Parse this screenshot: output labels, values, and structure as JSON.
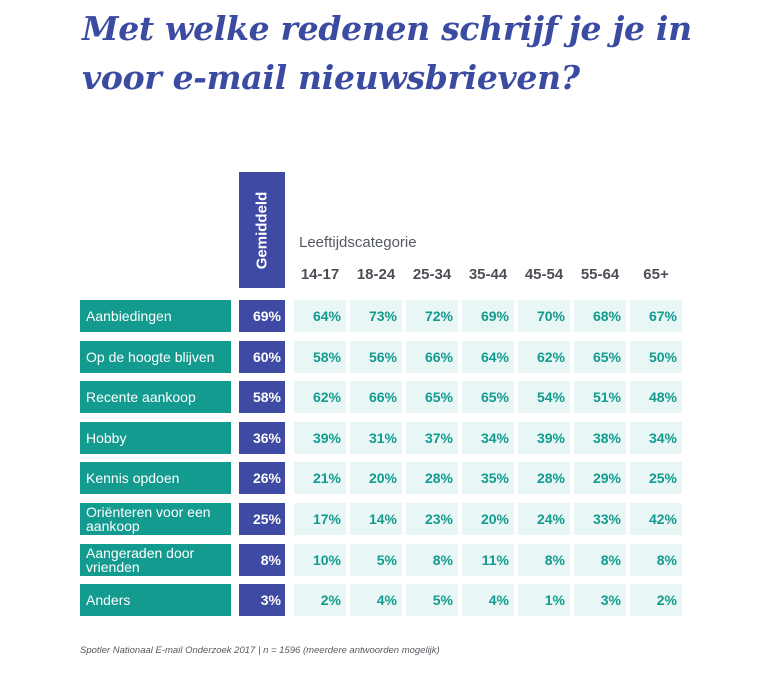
{
  "title": "Met welke redenen schrijf je je in voor e-mail nieuwsbrieven?",
  "footnote": "Spotler Nationaal E-mail Onderzoek 2017 | n = 1596 (meerdere antwoorden mogelijk)",
  "chart_data": {
    "type": "table",
    "title": "Met welke redenen schrijf je je in voor e-mail nieuwsbrieven?",
    "average_label": "Gemiddeld",
    "category_group_label": "Leeftijdscategorie",
    "age_groups": [
      "14-17",
      "18-24",
      "25-34",
      "35-44",
      "45-54",
      "55-64",
      "65+"
    ],
    "rows": [
      {
        "label": "Aanbiedingen",
        "average": "69%",
        "values": [
          "64%",
          "73%",
          "72%",
          "69%",
          "70%",
          "68%",
          "67%"
        ]
      },
      {
        "label": "Op de hoogte blijven",
        "average": "60%",
        "values": [
          "58%",
          "56%",
          "66%",
          "64%",
          "62%",
          "65%",
          "50%"
        ]
      },
      {
        "label": "Recente aankoop",
        "average": "58%",
        "values": [
          "62%",
          "66%",
          "65%",
          "65%",
          "54%",
          "51%",
          "48%"
        ]
      },
      {
        "label": "Hobby",
        "average": "36%",
        "values": [
          "39%",
          "31%",
          "37%",
          "34%",
          "39%",
          "38%",
          "34%"
        ]
      },
      {
        "label": "Kennis opdoen",
        "average": "26%",
        "values": [
          "21%",
          "20%",
          "28%",
          "35%",
          "28%",
          "29%",
          "25%"
        ]
      },
      {
        "label": "Oriënteren voor een aankoop",
        "average": "25%",
        "values": [
          "17%",
          "14%",
          "23%",
          "20%",
          "24%",
          "33%",
          "42%"
        ]
      },
      {
        "label": "Aangeraden door vrienden",
        "average": "8%",
        "values": [
          "10%",
          "5%",
          "8%",
          "11%",
          "8%",
          "8%",
          "8%"
        ]
      },
      {
        "label": "Anders",
        "average": "3%",
        "values": [
          "2%",
          "4%",
          "5%",
          "4%",
          "1%",
          "3%",
          "2%"
        ]
      }
    ],
    "colors": {
      "title": "#3b4ba1",
      "average_column": "#3e4aa3",
      "row_label_bg": "#139b8f",
      "value_cell_bg": "#e8f6f5",
      "value_text": "#139b8f"
    }
  }
}
